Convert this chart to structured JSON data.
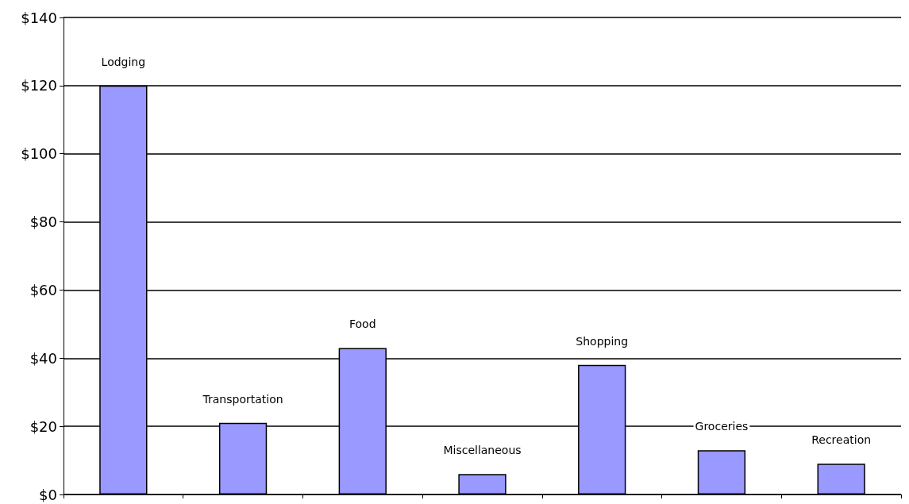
{
  "chart_data": {
    "type": "bar",
    "categories": [
      "Lodging",
      "Transportation",
      "Food",
      "Miscellaneous",
      "Shopping",
      "Groceries",
      "Recreation"
    ],
    "values": [
      120,
      21,
      43,
      6,
      38,
      13,
      9
    ],
    "color": "#9999ff",
    "ylim": [
      0,
      140
    ],
    "yticks": [
      {
        "value": 0,
        "label": "$0"
      },
      {
        "value": 20,
        "label": "$20"
      },
      {
        "value": 40,
        "label": "$40"
      },
      {
        "value": 60,
        "label": "$60"
      },
      {
        "value": 80,
        "label": "$80"
      },
      {
        "value": 100,
        "label": "$100"
      },
      {
        "value": 120,
        "label": "$120"
      },
      {
        "value": 140,
        "label": "$140"
      }
    ],
    "grid": "y",
    "tick_labels": "y"
  }
}
